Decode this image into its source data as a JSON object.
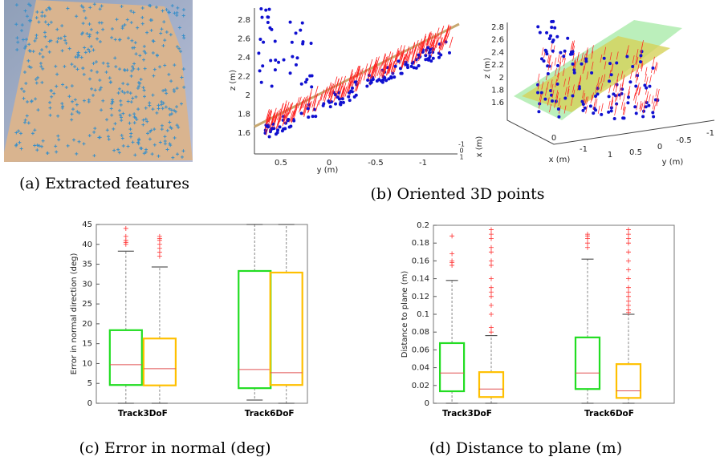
{
  "captions": {
    "a": "(a) Extracted features",
    "b": "(b) Oriented 3D points",
    "c": "(c) Error in normal (deg)",
    "d": "(d) Distance to plane (m)"
  },
  "panel_b": {
    "side": {
      "zlabel": "z (m)",
      "zticks": [
        "2.8",
        "2.6",
        "2.4",
        "2.2",
        "2",
        "1.8",
        "1.6"
      ],
      "ylabel": "y (m)",
      "yticks": [
        "0.5",
        "0",
        "-0.5",
        "-1"
      ],
      "xlabel": "x (m)",
      "xticks": [
        "-1",
        "0",
        "1"
      ]
    },
    "persp": {
      "zlabel": "z (m)",
      "zticks": [
        "2.8",
        "2.6",
        "2.4",
        "2.2",
        "2",
        "1.8",
        "1.6"
      ],
      "xlabel": "x (m)",
      "xticks": [
        "0",
        "-1"
      ],
      "ylabel": "y (m)",
      "yticks": [
        "1",
        "0.5",
        "0",
        "-0.5",
        "-1"
      ]
    }
  },
  "chart_data": [
    {
      "type": "box",
      "ylabel": "Error in normal direction (deg)",
      "categories": [
        "Track3DoF",
        "Track6DoF"
      ],
      "ylim": [
        0,
        45
      ],
      "yticks": [
        0,
        5,
        10,
        15,
        20,
        25,
        30,
        35,
        40,
        45
      ],
      "series": [
        {
          "color": "#22dd22",
          "boxes": [
            {
              "whislo": 0,
              "q1": 4.6,
              "med": 9.7,
              "q3": 18.4,
              "whishi": 38.3,
              "fliers": [
                44,
                42,
                41,
                40.5,
                40
              ]
            },
            {
              "whislo": 0.8,
              "q1": 3.8,
              "med": 8.5,
              "q3": 33.3,
              "whishi": 45,
              "fliers": []
            }
          ]
        },
        {
          "color": "#ffc000",
          "boxes": [
            {
              "whislo": 0,
              "q1": 4.5,
              "med": 8.7,
              "q3": 16.3,
              "whishi": 34.3,
              "fliers": [
                42,
                41.5,
                41,
                40,
                39,
                38,
                37
              ]
            },
            {
              "whislo": 0,
              "q1": 4.6,
              "med": 7.7,
              "q3": 32.9,
              "whishi": 45,
              "fliers": []
            }
          ]
        }
      ]
    },
    {
      "type": "box",
      "ylabel": "Distance to plane (m)",
      "categories": [
        "Track3DoF",
        "Track6DoF"
      ],
      "ylim": [
        0,
        0.2
      ],
      "yticks": [
        0,
        0.02,
        0.04,
        0.06,
        0.08,
        0.1,
        0.12,
        0.14,
        0.16,
        0.18,
        0.2
      ],
      "series": [
        {
          "color": "#22dd22",
          "boxes": [
            {
              "whislo": 0,
              "q1": 0.0135,
              "med": 0.034,
              "q3": 0.0676,
              "whishi": 0.138,
              "fliers": [
                0.188,
                0.168,
                0.16,
                0.158,
                0.155
              ]
            },
            {
              "whislo": 0,
              "q1": 0.016,
              "med": 0.034,
              "q3": 0.074,
              "whishi": 0.162,
              "fliers": [
                0.19,
                0.188,
                0.185,
                0.18,
                0.175
              ]
            }
          ]
        },
        {
          "color": "#ffc000",
          "boxes": [
            {
              "whislo": 0,
              "q1": 0.007,
              "med": 0.016,
              "q3": 0.035,
              "whishi": 0.076,
              "fliers": [
                0.195,
                0.19,
                0.185,
                0.175,
                0.17,
                0.16,
                0.155,
                0.14,
                0.13,
                0.125,
                0.12,
                0.11,
                0.1,
                0.085,
                0.08
              ]
            },
            {
              "whislo": 0,
              "q1": 0.006,
              "med": 0.014,
              "q3": 0.044,
              "whishi": 0.1,
              "fliers": [
                0.195,
                0.19,
                0.185,
                0.18,
                0.17,
                0.16,
                0.15,
                0.14,
                0.13,
                0.125,
                0.12,
                0.115,
                0.11,
                0.105,
                0.102
              ]
            }
          ]
        }
      ]
    }
  ]
}
